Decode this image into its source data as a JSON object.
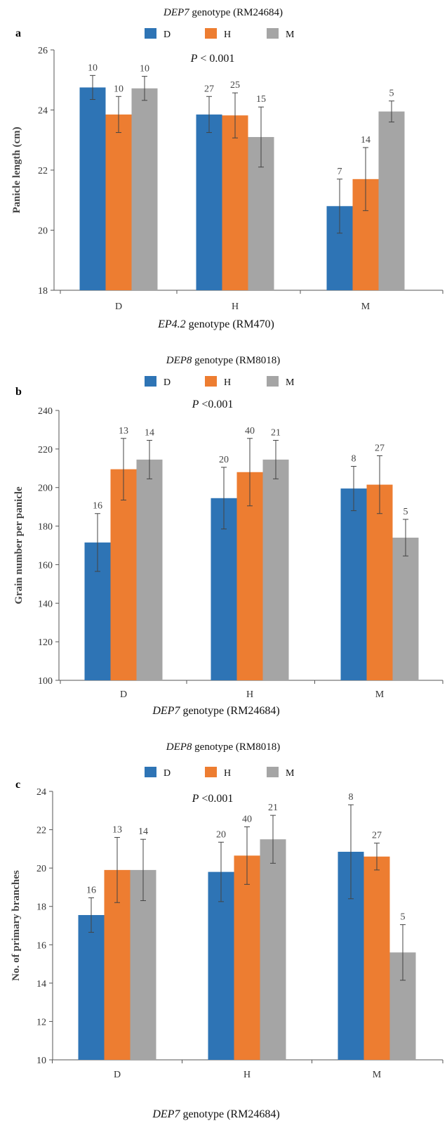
{
  "colors": {
    "D": "#2e74b5",
    "H": "#ed7d31",
    "M": "#a5a5a5",
    "axis": "#555555",
    "errorbar": "#444444"
  },
  "chart_data": [
    {
      "type": "bar",
      "panel": "a",
      "top_label": {
        "italic": "DEP7",
        "rest": " genotype (RM24684)"
      },
      "xlabel": {
        "italic": "EP4.2",
        "rest": " genotype (RM470)"
      },
      "ylabel": "Panicle length (cm)",
      "ylim": [
        18,
        26
      ],
      "yticks": [
        18,
        20,
        22,
        24,
        26
      ],
      "annotation": {
        "italic": "P",
        "rest": " < 0.001"
      },
      "legend": [
        "D",
        "H",
        "M"
      ],
      "categories": [
        "D",
        "H",
        "M"
      ],
      "series": [
        {
          "name": "D",
          "values": [
            24.75,
            23.85,
            20.8
          ],
          "errors": [
            0.4,
            0.6,
            0.9
          ],
          "n": [
            "10",
            "27",
            "7"
          ]
        },
        {
          "name": "H",
          "values": [
            23.85,
            23.82,
            21.7
          ],
          "errors": [
            0.6,
            0.75,
            1.05
          ],
          "n": [
            "10",
            "25",
            "14"
          ]
        },
        {
          "name": "M",
          "values": [
            24.72,
            23.1,
            23.95
          ],
          "errors": [
            0.4,
            1.0,
            0.35
          ],
          "n": [
            "10",
            "15",
            "5"
          ]
        }
      ]
    },
    {
      "type": "bar",
      "panel": "b",
      "top_label": {
        "italic": "DEP8",
        "rest": " genotype (RM8018)"
      },
      "xlabel": {
        "italic": "DEP7",
        "rest": " genotype (RM24684)"
      },
      "ylabel": "Grain number per panicle",
      "ylim": [
        100,
        240
      ],
      "yticks": [
        100,
        120,
        140,
        160,
        180,
        200,
        220,
        240
      ],
      "annotation": {
        "italic": "P",
        "rest": " <0.001"
      },
      "legend": [
        "D",
        "H",
        "M"
      ],
      "categories": [
        "D",
        "H",
        "M"
      ],
      "series": [
        {
          "name": "D",
          "values": [
            171.5,
            194.5,
            199.5
          ],
          "errors": [
            15,
            16,
            11.5
          ],
          "n": [
            "16",
            "20",
            "8"
          ]
        },
        {
          "name": "H",
          "values": [
            209.5,
            208,
            201.5
          ],
          "errors": [
            16,
            17.5,
            15
          ],
          "n": [
            "13",
            "40",
            "27"
          ]
        },
        {
          "name": "M",
          "values": [
            214.5,
            214.5,
            174
          ],
          "errors": [
            10,
            10,
            9.5
          ],
          "n": [
            "14",
            "21",
            "5"
          ]
        }
      ]
    },
    {
      "type": "bar",
      "panel": "c",
      "top_label": {
        "italic": "DEP8",
        "rest": " genotype (RM8018)"
      },
      "xlabel": {
        "italic": "DEP7",
        "rest": " genotype (RM24684)"
      },
      "ylabel": "No. of primary branches",
      "ylim": [
        10,
        24
      ],
      "yticks": [
        10,
        12,
        14,
        16,
        18,
        20,
        22,
        24
      ],
      "annotation": {
        "italic": "P",
        "rest": " <0.001"
      },
      "legend": [
        "D",
        "H",
        "M"
      ],
      "categories": [
        "D",
        "H",
        "M"
      ],
      "series": [
        {
          "name": "D",
          "values": [
            17.55,
            19.8,
            20.85
          ],
          "errors": [
            0.9,
            1.55,
            2.45
          ],
          "n": [
            "16",
            "20",
            "8"
          ]
        },
        {
          "name": "H",
          "values": [
            19.9,
            20.65,
            20.6
          ],
          "errors": [
            1.7,
            1.5,
            0.7
          ],
          "n": [
            "13",
            "40",
            "27"
          ]
        },
        {
          "name": "M",
          "values": [
            19.9,
            21.5,
            15.6
          ],
          "errors": [
            1.6,
            1.25,
            1.45
          ],
          "n": [
            "14",
            "21",
            "5"
          ]
        }
      ]
    }
  ]
}
